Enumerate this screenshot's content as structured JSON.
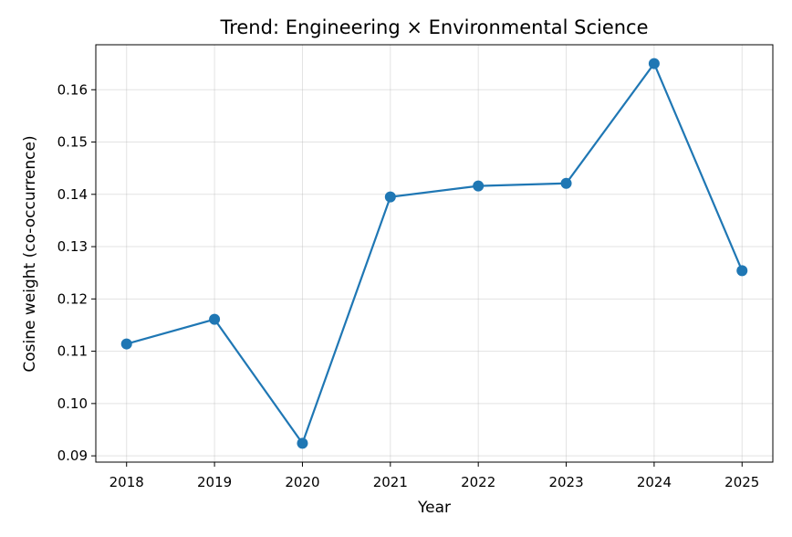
{
  "chart_data": {
    "type": "line",
    "title": "Trend: Engineering × Environmental Science",
    "xlabel": "Year",
    "ylabel": "Cosine weight (co-occurrence)",
    "x": [
      2018,
      2019,
      2020,
      2021,
      2022,
      2023,
      2024,
      2025
    ],
    "x_tick_labels": [
      "2018",
      "2019",
      "2020",
      "2021",
      "2022",
      "2023",
      "2024",
      "2025"
    ],
    "series": [
      {
        "values": [
          0.1114,
          0.1161,
          0.0924,
          0.1395,
          0.1416,
          0.1421,
          0.165,
          0.1254
        ],
        "color": "#1f77b4",
        "marker": "circle"
      }
    ],
    "yticks": [
      0.09,
      0.1,
      0.11,
      0.12,
      0.13,
      0.14,
      0.15,
      0.16
    ],
    "y_tick_labels": [
      "0.09",
      "0.10",
      "0.11",
      "0.12",
      "0.13",
      "0.14",
      "0.15",
      "0.16"
    ],
    "xlim": [
      2017.65,
      2025.35
    ],
    "ylim": [
      0.0888,
      0.1686
    ],
    "grid": true
  }
}
